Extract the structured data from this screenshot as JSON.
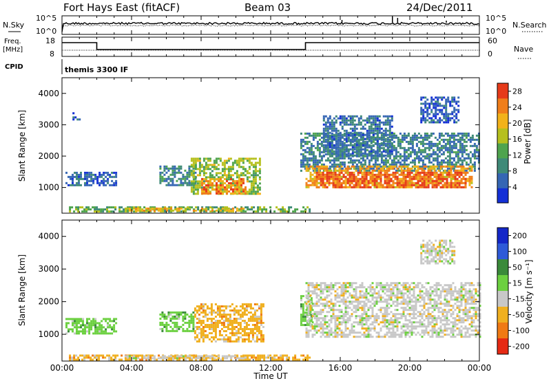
{
  "header": {
    "title_left": "Fort Hays East (fitACF)",
    "title_center": "Beam 03",
    "title_right": "24/Dec/2011"
  },
  "noise_panel": {
    "left_label": "N.Sky",
    "left_ticks": [
      "10^5",
      "10^0"
    ],
    "right_label": "N.Search",
    "right_ticks": [
      "10^5",
      "10^0"
    ]
  },
  "freq_panel": {
    "left_label_1": "Freq.",
    "left_label_2": "[MHz]",
    "left_ticks": [
      "18",
      "8"
    ],
    "right_label": "Nave",
    "right_ticks": [
      "60",
      "0"
    ],
    "cpid_label": "CPID",
    "cpid_value": "themis 3300 IF"
  },
  "chart_data": [
    {
      "type": "heatmap",
      "name": "power",
      "ylabel": "Slant Range [km]",
      "ylim": [
        180,
        4500
      ],
      "y_ticks": [
        "1000",
        "2000",
        "3000",
        "4000"
      ],
      "y_tick_values": [
        1000,
        2000,
        3000,
        4000
      ],
      "xlim_hours": [
        0,
        24
      ],
      "colorbar": {
        "label": "Power [dB]",
        "range": [
          0,
          30
        ],
        "ticks": [
          "4",
          "8",
          "12",
          "16",
          "20",
          "24",
          "28"
        ],
        "tick_values": [
          4,
          8,
          12,
          16,
          20,
          24,
          28
        ],
        "colors": [
          "#1430d6",
          "#3566b4",
          "#3f8a78",
          "#4fa44e",
          "#b6c01e",
          "#f2b21a",
          "#f07e1a",
          "#e63a1a"
        ]
      },
      "echo_regions": [
        {
          "t0": 0.2,
          "t1": 3.1,
          "r0": 1050,
          "r1": 1500,
          "value": 6
        },
        {
          "t0": 0.6,
          "t1": 1.0,
          "r0": 3200,
          "r1": 3400,
          "value": 5
        },
        {
          "t0": 0.4,
          "t1": 14.2,
          "r0": 250,
          "r1": 400,
          "value": 13
        },
        {
          "t0": 3.6,
          "t1": 10.4,
          "r0": 260,
          "r1": 360,
          "value": 20
        },
        {
          "t0": 5.6,
          "t1": 7.7,
          "r0": 1100,
          "r1": 1700,
          "value": 9
        },
        {
          "t0": 7.4,
          "t1": 11.4,
          "r0": 780,
          "r1": 1950,
          "value": 15
        },
        {
          "t0": 8.0,
          "t1": 10.6,
          "r0": 800,
          "r1": 1300,
          "value": 24
        },
        {
          "t0": 13.7,
          "t1": 24.0,
          "r0": 1550,
          "r1": 2750,
          "value": 8
        },
        {
          "t0": 14.0,
          "t1": 23.6,
          "r0": 1000,
          "r1": 1700,
          "value": 22
        },
        {
          "t0": 14.6,
          "t1": 23.2,
          "r0": 1000,
          "r1": 1500,
          "value": 27
        },
        {
          "t0": 15.0,
          "t1": 19.0,
          "r0": 2000,
          "r1": 3300,
          "value": 7
        },
        {
          "t0": 20.6,
          "t1": 22.8,
          "r0": 3100,
          "r1": 3900,
          "value": 5
        }
      ]
    },
    {
      "type": "heatmap",
      "name": "velocity",
      "ylabel": "Slant Range [km]",
      "ylim": [
        180,
        4500
      ],
      "y_ticks": [
        "1000",
        "2000",
        "3000",
        "4000"
      ],
      "y_tick_values": [
        1000,
        2000,
        3000,
        4000
      ],
      "xlim_hours": [
        0,
        24
      ],
      "colorbar": {
        "label": "Velocity [m s⁻¹]",
        "ticks": [
          "200",
          "100",
          "50",
          "15",
          "-15",
          "-50",
          "-100",
          "-200"
        ],
        "colors": [
          "#1427c8",
          "#2e5ad8",
          "#3a8a3a",
          "#6cd040",
          "#c8c8c8",
          "#f0b020",
          "#f07a14",
          "#e62a14"
        ]
      },
      "echo_regions": [
        {
          "t0": 0.2,
          "t1": 3.1,
          "r0": 1000,
          "r1": 1500,
          "cls": 3
        },
        {
          "t0": 0.4,
          "t1": 14.2,
          "r0": 250,
          "r1": 380,
          "cls": 5
        },
        {
          "t0": 3.6,
          "t1": 10.4,
          "r0": 260,
          "r1": 360,
          "cls": 4
        },
        {
          "t0": 5.6,
          "t1": 7.6,
          "r0": 1100,
          "r1": 1700,
          "cls": 3
        },
        {
          "t0": 7.6,
          "t1": 11.6,
          "r0": 780,
          "r1": 1950,
          "cls": 5
        },
        {
          "t0": 13.7,
          "t1": 14.4,
          "r0": 1300,
          "r1": 2200,
          "cls": 3
        },
        {
          "t0": 14.0,
          "t1": 24.0,
          "r0": 950,
          "r1": 2600,
          "cls": 4
        },
        {
          "t0": 20.6,
          "t1": 22.6,
          "r0": 3200,
          "r1": 3900,
          "cls": 4
        }
      ]
    }
  ],
  "x_axis": {
    "ticks": [
      "00:00",
      "04:00",
      "08:00",
      "12:00",
      "16:00",
      "20:00",
      "00:00"
    ],
    "tick_hours": [
      0,
      4,
      8,
      12,
      16,
      20,
      24
    ],
    "label": "Time UT"
  }
}
